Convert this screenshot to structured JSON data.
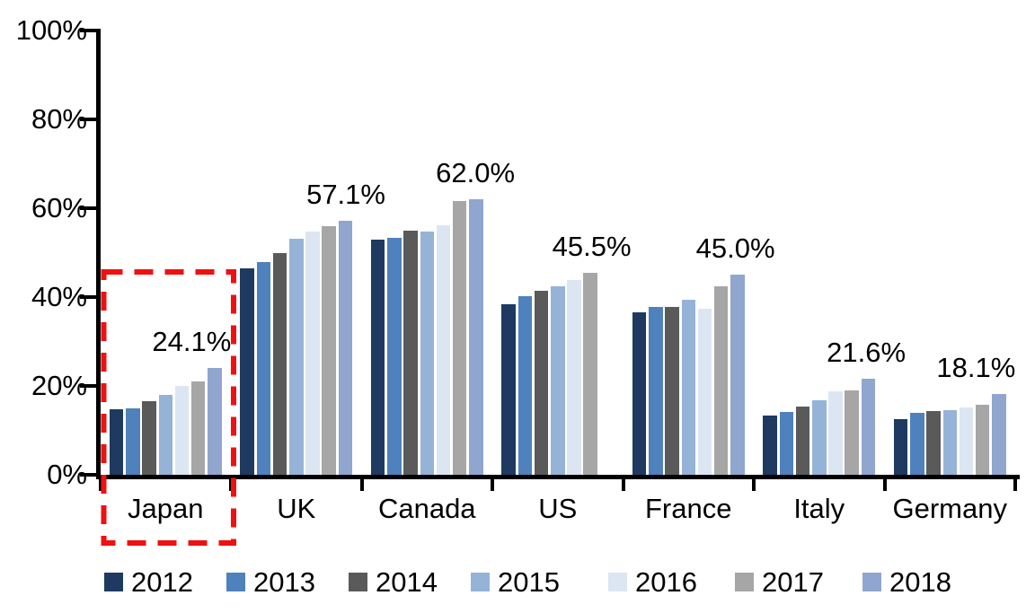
{
  "chart_data": {
    "type": "bar",
    "title": "",
    "xlabel": "",
    "ylabel": "",
    "categories": [
      "Japan",
      "UK",
      "Canada",
      "US",
      "France",
      "Italy",
      "Germany"
    ],
    "series": [
      {
        "name": "2012",
        "color": "#1F3A60",
        "values": [
          14.8,
          46.4,
          53.0,
          38.4,
          36.6,
          13.3,
          12.5
        ]
      },
      {
        "name": "2013",
        "color": "#4F81BD",
        "values": [
          15.0,
          47.8,
          53.4,
          40.2,
          37.8,
          14.1,
          13.9
        ]
      },
      {
        "name": "2014",
        "color": "#5A5A5A",
        "values": [
          16.6,
          49.8,
          54.9,
          41.4,
          37.8,
          15.4,
          14.3
        ]
      },
      {
        "name": "2015",
        "color": "#95B3D7",
        "values": [
          18.0,
          53.2,
          54.7,
          42.4,
          39.4,
          16.8,
          14.5
        ]
      },
      {
        "name": "2016",
        "color": "#DCE6F2",
        "values": [
          20.0,
          54.8,
          56.1,
          43.9,
          37.4,
          18.8,
          15.2
        ]
      },
      {
        "name": "2017",
        "color": "#A6A6A6",
        "values": [
          21.0,
          55.9,
          61.7,
          45.5,
          42.4,
          19.0,
          15.8
        ]
      },
      {
        "name": "2018",
        "color": "#90A6CF",
        "values": [
          24.1,
          57.1,
          62.0,
          null,
          45.0,
          21.6,
          18.1
        ]
      }
    ],
    "data_labels": [
      "24.1%",
      "57.1%",
      "62.0%",
      "45.5%",
      "45.0%",
      "21.6%",
      "18.1%"
    ],
    "ylim": [
      0,
      100
    ],
    "yticks": [
      {
        "value": 0,
        "label": "0%"
      },
      {
        "value": 20,
        "label": "20%"
      },
      {
        "value": 40,
        "label": "40%"
      },
      {
        "value": 60,
        "label": "60%"
      },
      {
        "value": 80,
        "label": "80%"
      },
      {
        "value": 100,
        "label": "100%"
      }
    ],
    "grid": false,
    "legend_position": "bottom",
    "axis_color": "#000000",
    "highlight": {
      "category": "Japan",
      "style": "red-dashed-rectangle",
      "color": "#EE1111"
    }
  }
}
